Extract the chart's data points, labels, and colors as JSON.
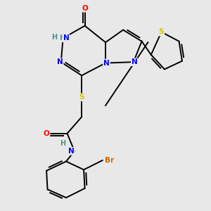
{
  "bg_color": "#e8e8e8",
  "atom_colors": {
    "C": "#000000",
    "N": "#0000ff",
    "O": "#ff0000",
    "S": "#cccc00",
    "Br": "#cc6600",
    "H": "#4a9090"
  },
  "bond_color": "#000000",
  "figsize": [
    3.0,
    3.0
  ],
  "dpi": 100
}
